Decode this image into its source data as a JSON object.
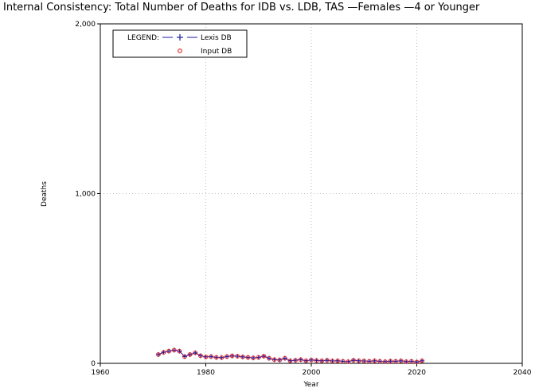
{
  "chart_data": {
    "type": "scatter",
    "title": "Internal Consistency: Total Number of Deaths for IDB vs. LDB, TAS —Females —4 or Younger",
    "xlabel": "Year",
    "ylabel": "Deaths",
    "xlim": [
      1960,
      2040
    ],
    "ylim": [
      0,
      2000
    ],
    "xticks": [
      "1960",
      "1980",
      "2000",
      "2020",
      "2040"
    ],
    "yticks": [
      "0",
      "1,000",
      "2,000"
    ],
    "grid": true,
    "legend": {
      "placement": "top-left",
      "title": "LEGEND:",
      "entries": [
        "Lexis DB",
        "Input DB"
      ]
    },
    "x": [
      1971,
      1972,
      1973,
      1974,
      1975,
      1976,
      1977,
      1978,
      1979,
      1980,
      1981,
      1982,
      1983,
      1984,
      1985,
      1986,
      1987,
      1988,
      1989,
      1990,
      1991,
      1992,
      1993,
      1994,
      1995,
      1996,
      1997,
      1998,
      1999,
      2000,
      2001,
      2002,
      2003,
      2004,
      2005,
      2006,
      2007,
      2008,
      2009,
      2010,
      2011,
      2012,
      2013,
      2014,
      2015,
      2016,
      2017,
      2018,
      2019,
      2020,
      2021
    ],
    "series": [
      {
        "name": "Lexis DB",
        "color": "#1a1aa6",
        "marker": "plus",
        "values": [
          52,
          65,
          72,
          78,
          72,
          40,
          52,
          62,
          45,
          38,
          40,
          35,
          34,
          40,
          44,
          42,
          38,
          35,
          32,
          35,
          42,
          30,
          22,
          20,
          30,
          15,
          18,
          22,
          15,
          20,
          17,
          15,
          18,
          14,
          15,
          12,
          10,
          18,
          15,
          14,
          12,
          15,
          12,
          10,
          13,
          12,
          15,
          10,
          12,
          8,
          15
        ]
      },
      {
        "name": "Input DB",
        "color": "#e02020",
        "marker": "circle",
        "values": [
          52,
          65,
          72,
          78,
          72,
          40,
          52,
          62,
          45,
          38,
          40,
          35,
          34,
          40,
          44,
          42,
          38,
          35,
          32,
          35,
          42,
          30,
          22,
          20,
          30,
          15,
          18,
          22,
          15,
          20,
          17,
          15,
          18,
          14,
          15,
          12,
          10,
          18,
          15,
          14,
          12,
          15,
          12,
          10,
          13,
          12,
          15,
          10,
          12,
          8,
          15
        ]
      }
    ]
  }
}
